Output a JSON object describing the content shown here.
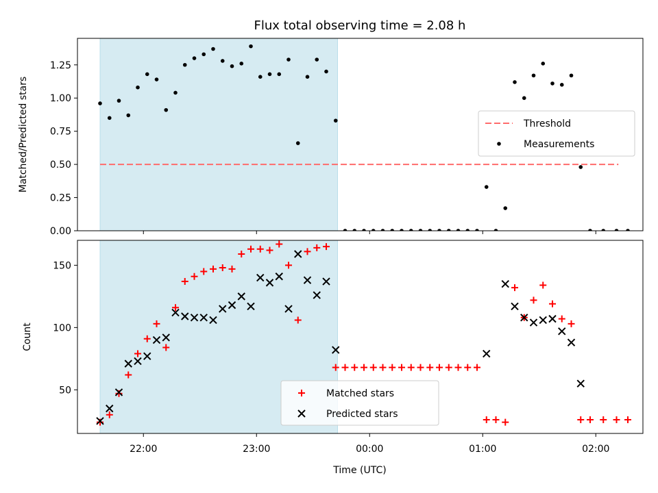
{
  "figure": {
    "title": "Flux total observing time = 2.08 h",
    "xlabel": "Time (UTC)"
  },
  "chart_data": [
    {
      "type": "scatter",
      "panel": "top",
      "ylabel": "Matched/Predicted stars",
      "x_unit": "minutes after 00:00 UTC (negative = before midnight)",
      "xlim": [
        -155,
        145
      ],
      "ylim": [
        0,
        1.45
      ],
      "yticks": [
        0.0,
        0.25,
        0.5,
        0.75,
        1.0,
        1.25
      ],
      "ytick_labels": [
        "0.00",
        "0.25",
        "0.50",
        "0.75",
        "1.00",
        "1.25"
      ],
      "shaded_span": {
        "from": -143,
        "to": -17,
        "color": "#add8e6"
      },
      "threshold": {
        "name": "Threshold",
        "value": 0.5,
        "from": -143,
        "to": 132,
        "color": "#ff6b6b"
      },
      "legend_position": "center-right",
      "series": [
        {
          "name": "Measurements",
          "color": "#000000",
          "points": [
            [
              -143,
              0.96
            ],
            [
              -138,
              0.85
            ],
            [
              -133,
              0.98
            ],
            [
              -128,
              0.87
            ],
            [
              -123,
              1.08
            ],
            [
              -118,
              1.18
            ],
            [
              -113,
              1.14
            ],
            [
              -108,
              0.91
            ],
            [
              -103,
              1.04
            ],
            [
              -98,
              1.25
            ],
            [
              -93,
              1.3
            ],
            [
              -88,
              1.33
            ],
            [
              -83,
              1.37
            ],
            [
              -78,
              1.28
            ],
            [
              -73,
              1.24
            ],
            [
              -68,
              1.26
            ],
            [
              -63,
              1.39
            ],
            [
              -58,
              1.16
            ],
            [
              -53,
              1.18
            ],
            [
              -48,
              1.18
            ],
            [
              -43,
              1.29
            ],
            [
              -38,
              0.66
            ],
            [
              -33,
              1.16
            ],
            [
              -28,
              1.29
            ],
            [
              -23,
              1.2
            ],
            [
              -18,
              0.83
            ],
            [
              -13,
              0
            ],
            [
              -8,
              0
            ],
            [
              -3,
              0
            ],
            [
              2,
              0
            ],
            [
              7,
              0
            ],
            [
              12,
              0
            ],
            [
              17,
              0
            ],
            [
              22,
              0
            ],
            [
              27,
              0
            ],
            [
              32,
              0
            ],
            [
              37,
              0
            ],
            [
              42,
              0
            ],
            [
              47,
              0
            ],
            [
              52,
              0
            ],
            [
              57,
              0
            ],
            [
              62,
              0.33
            ],
            [
              67,
              0
            ],
            [
              72,
              0.17
            ],
            [
              77,
              1.12
            ],
            [
              82,
              1.0
            ],
            [
              87,
              1.17
            ],
            [
              92,
              1.26
            ],
            [
              97,
              1.11
            ],
            [
              102,
              1.1
            ],
            [
              107,
              1.17
            ],
            [
              112,
              0.48
            ],
            [
              117,
              0
            ],
            [
              124,
              0
            ],
            [
              131,
              0
            ],
            [
              137,
              0
            ]
          ]
        }
      ]
    },
    {
      "type": "scatter",
      "panel": "bottom",
      "ylabel": "Count",
      "x_unit": "minutes after 00:00 UTC (negative = before midnight)",
      "xlim": [
        -155,
        145
      ],
      "ylim": [
        15,
        170
      ],
      "yticks": [
        50,
        100,
        150
      ],
      "ytick_labels": [
        "50",
        "100",
        "150"
      ],
      "xticks": [
        -120,
        -60,
        0,
        60,
        120
      ],
      "xtick_labels": [
        "22:00",
        "23:00",
        "00:00",
        "01:00",
        "02:00"
      ],
      "shaded_span": {
        "from": -143,
        "to": -17,
        "color": "#add8e6"
      },
      "legend_position": "lower-center",
      "series": [
        {
          "name": "Matched stars",
          "marker": "plus",
          "color": "#ff0000",
          "points": [
            [
              -143,
              24
            ],
            [
              -138,
              30
            ],
            [
              -133,
              47
            ],
            [
              -128,
              62
            ],
            [
              -123,
              79
            ],
            [
              -118,
              91
            ],
            [
              -113,
              103
            ],
            [
              -108,
              84
            ],
            [
              -103,
              116
            ],
            [
              -98,
              137
            ],
            [
              -93,
              141
            ],
            [
              -88,
              145
            ],
            [
              -83,
              147
            ],
            [
              -78,
              148
            ],
            [
              -73,
              147
            ],
            [
              -68,
              159
            ],
            [
              -63,
              163
            ],
            [
              -58,
              163
            ],
            [
              -53,
              162
            ],
            [
              -48,
              167
            ],
            [
              -43,
              150
            ],
            [
              -38,
              106
            ],
            [
              -33,
              161
            ],
            [
              -28,
              164
            ],
            [
              -23,
              165
            ],
            [
              -18,
              68
            ],
            [
              -13,
              68
            ],
            [
              -8,
              68
            ],
            [
              -3,
              68
            ],
            [
              2,
              68
            ],
            [
              7,
              68
            ],
            [
              12,
              68
            ],
            [
              17,
              68
            ],
            [
              22,
              68
            ],
            [
              27,
              68
            ],
            [
              32,
              68
            ],
            [
              37,
              68
            ],
            [
              42,
              68
            ],
            [
              47,
              68
            ],
            [
              52,
              68
            ],
            [
              57,
              68
            ],
            [
              62,
              26
            ],
            [
              67,
              26
            ],
            [
              72,
              24
            ],
            [
              77,
              132
            ],
            [
              82,
              108
            ],
            [
              87,
              122
            ],
            [
              92,
              134
            ],
            [
              97,
              119
            ],
            [
              102,
              107
            ],
            [
              107,
              103
            ],
            [
              112,
              26
            ],
            [
              117,
              26
            ],
            [
              124,
              26
            ],
            [
              131,
              26
            ],
            [
              137,
              26
            ]
          ]
        },
        {
          "name": "Predicted stars",
          "marker": "x",
          "color": "#000000",
          "points": [
            [
              -143,
              25
            ],
            [
              -138,
              35
            ],
            [
              -133,
              48
            ],
            [
              -128,
              71
            ],
            [
              -123,
              73
            ],
            [
              -118,
              77
            ],
            [
              -113,
              90
            ],
            [
              -108,
              92
            ],
            [
              -103,
              112
            ],
            [
              -98,
              109
            ],
            [
              -93,
              108
            ],
            [
              -88,
              108
            ],
            [
              -83,
              106
            ],
            [
              -78,
              115
            ],
            [
              -73,
              118
            ],
            [
              -68,
              125
            ],
            [
              -63,
              117
            ],
            [
              -58,
              140
            ],
            [
              -53,
              136
            ],
            [
              -48,
              141
            ],
            [
              -43,
              115
            ],
            [
              -38,
              159
            ],
            [
              -33,
              138
            ],
            [
              -28,
              126
            ],
            [
              -23,
              137
            ],
            [
              -18,
              82
            ],
            [
              62,
              79
            ],
            [
              72,
              135
            ],
            [
              77,
              117
            ],
            [
              82,
              108
            ],
            [
              87,
              104
            ],
            [
              92,
              106
            ],
            [
              97,
              107
            ],
            [
              102,
              97
            ],
            [
              107,
              88
            ],
            [
              112,
              55
            ]
          ]
        }
      ]
    }
  ]
}
